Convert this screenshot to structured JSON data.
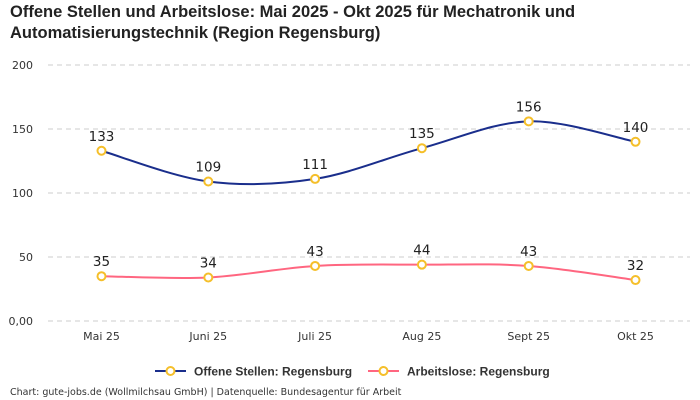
{
  "title": "Offene Stellen und Arbeitslose: Mai 2025 - Okt 2025 für Mechatronik und Automatisierungstechnik (Region Regensburg)",
  "credit": "Chart: gute-jobs.de (Wollmilchsau GmbH) | Datenquelle: Bundesagentur für Arbeit",
  "chart_data": {
    "type": "line",
    "title": "Offene Stellen und Arbeitslose: Mai 2025 - Okt 2025 für Mechatronik und Automatisierungstechnik (Region Regensburg)",
    "categories": [
      "Mai 25",
      "Juni 25",
      "Juli 25",
      "Aug 25",
      "Sept 25",
      "Okt 25"
    ],
    "ylim": [
      0,
      200
    ],
    "yticks": [
      0,
      50,
      100,
      150,
      200
    ],
    "ytick_labels": [
      "0,00",
      "50",
      "100",
      "150",
      "200"
    ],
    "grid": true,
    "legend_position": "bottom",
    "series": [
      {
        "name": "Offene Stellen: Regensburg",
        "values": [
          133,
          109,
          111,
          135,
          156,
          140
        ],
        "color": "#1a2e8c"
      },
      {
        "name": "Arbeitslose: Regensburg",
        "values": [
          35,
          34,
          43,
          44,
          43,
          32
        ],
        "color": "#ff6680"
      }
    ],
    "marker_color": "#f5bf2a"
  }
}
